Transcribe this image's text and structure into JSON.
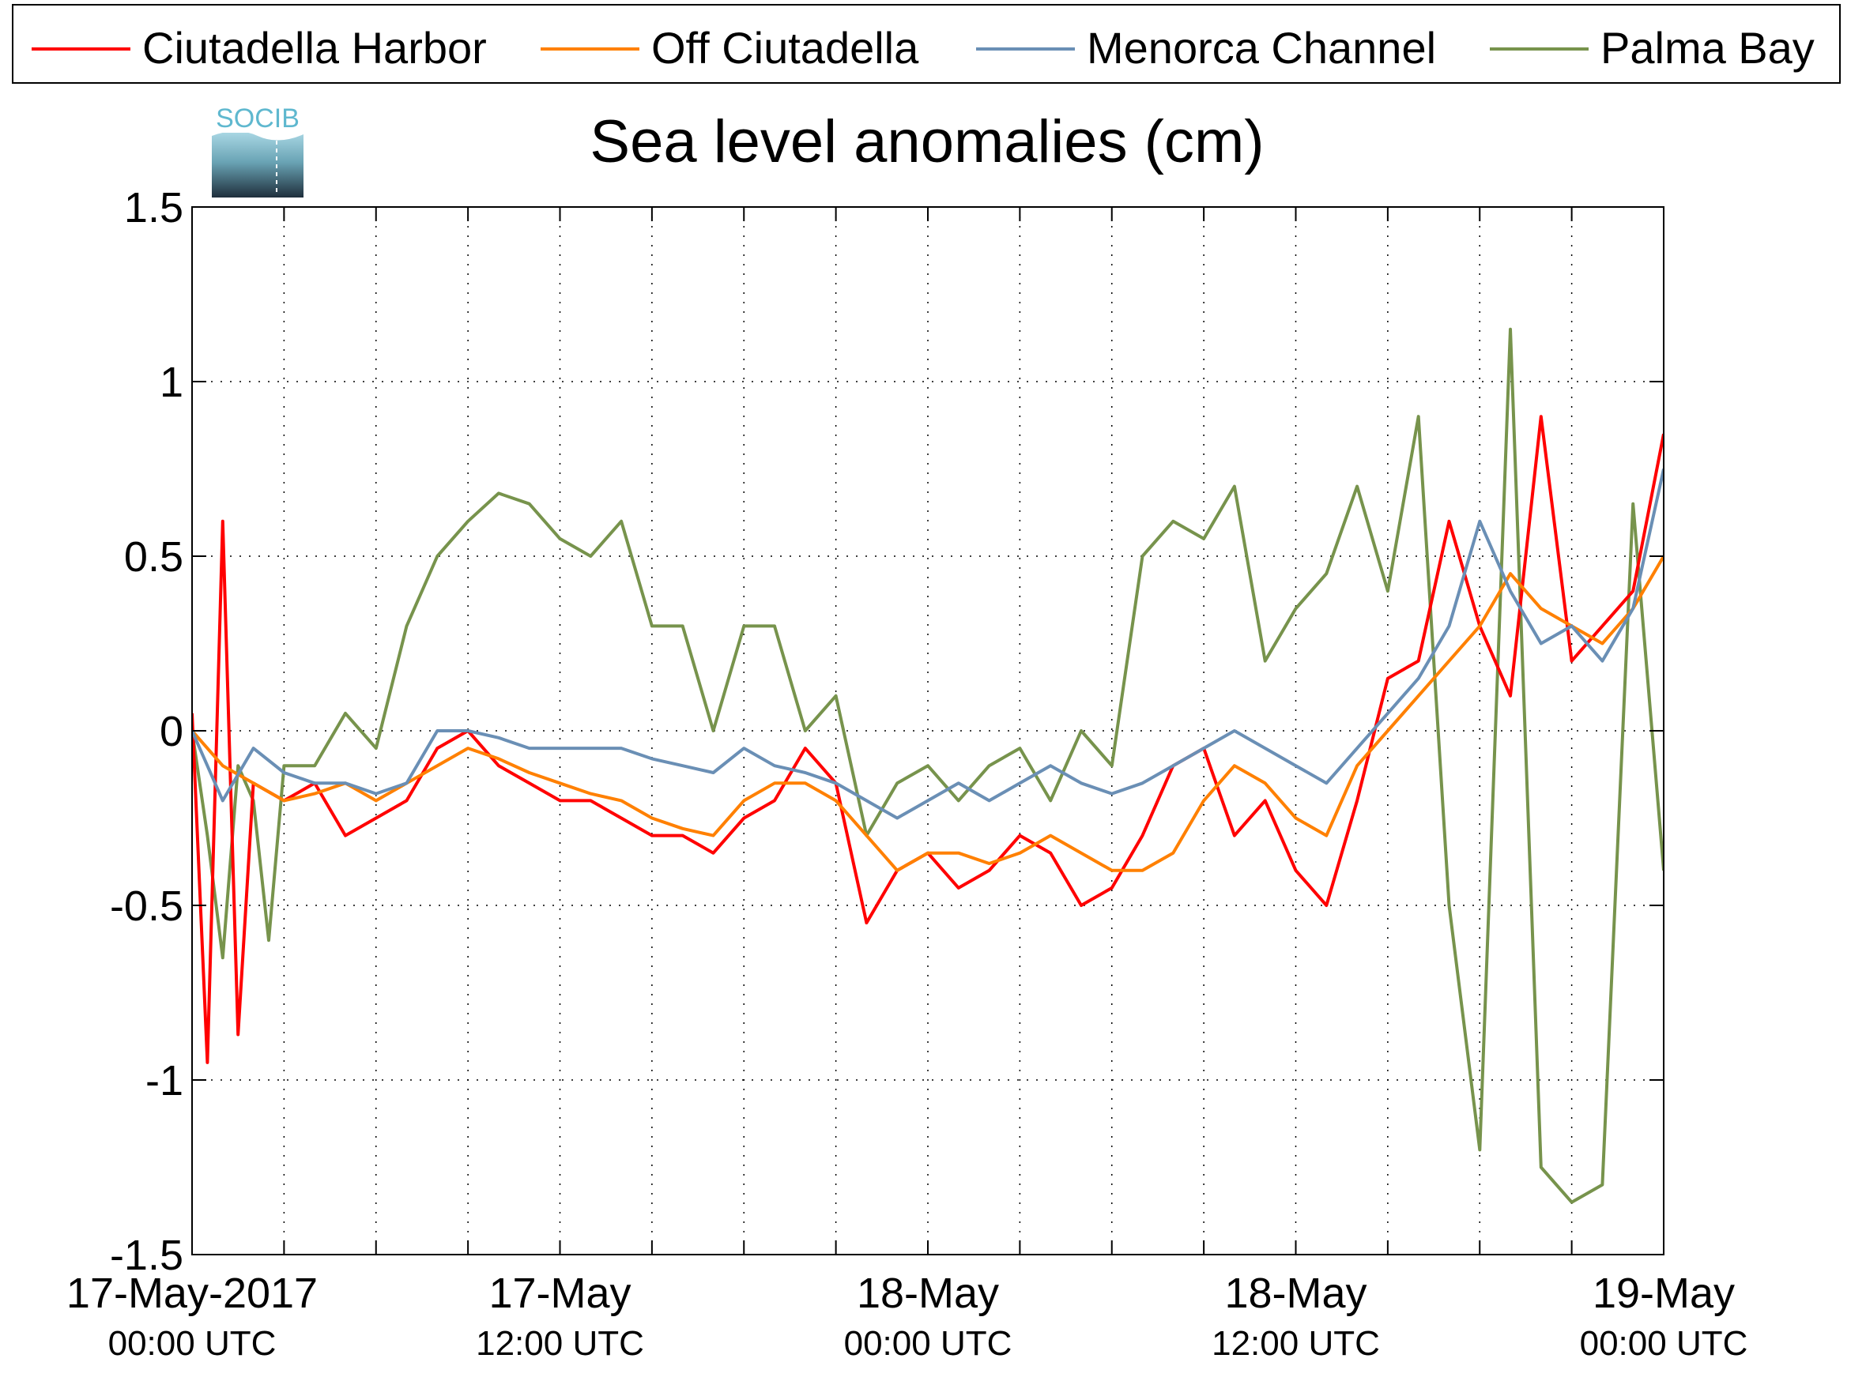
{
  "chart_data": {
    "type": "line",
    "title": "Sea level anomalies (cm)",
    "logo_text": "SOCIB",
    "ylim": [
      -1.5,
      1.5
    ],
    "y_ticks": [
      -1.5,
      -1,
      -0.5,
      0,
      0.5,
      1,
      1.5
    ],
    "y_tick_labels": [
      "-1.5",
      "-1",
      "-0.5",
      "0",
      "0.5",
      "1",
      "1.5"
    ],
    "x_range_hours": [
      0,
      48
    ],
    "x_ticks_hours": [
      3,
      6,
      9,
      12,
      15,
      18,
      21,
      24,
      27,
      30,
      33,
      36,
      39,
      42,
      45
    ],
    "x_tick_labels": [
      {
        "hour": 0,
        "line1": "17-May-2017",
        "line2": "00:00 UTC"
      },
      {
        "hour": 12,
        "line1": "17-May",
        "line2": "12:00 UTC"
      },
      {
        "hour": 24,
        "line1": "18-May",
        "line2": "00:00 UTC"
      },
      {
        "hour": 36,
        "line1": "18-May",
        "line2": "12:00 UTC"
      },
      {
        "hour": 48,
        "line1": "19-May",
        "line2": "00:00 UTC"
      }
    ],
    "grid": true,
    "legend_position": "top",
    "series": [
      {
        "name": "Ciutadella Harbor",
        "color": "#ff0000",
        "hours": [
          0,
          0.5,
          1,
          1.5,
          2,
          3,
          4,
          5,
          6,
          7,
          8,
          9,
          10,
          11,
          12,
          13,
          14,
          15,
          16,
          17,
          18,
          19,
          20,
          21,
          22,
          23,
          24,
          25,
          26,
          27,
          28,
          29,
          30,
          31,
          32,
          33,
          34,
          35,
          36,
          37,
          38,
          39,
          40,
          41,
          42,
          43,
          44,
          45,
          46,
          47,
          48
        ],
        "values": [
          0.05,
          -0.95,
          0.6,
          -0.87,
          -0.15,
          -0.2,
          -0.15,
          -0.3,
          -0.25,
          -0.2,
          -0.05,
          0.0,
          -0.1,
          -0.15,
          -0.2,
          -0.2,
          -0.25,
          -0.3,
          -0.3,
          -0.35,
          -0.25,
          -0.2,
          -0.05,
          -0.15,
          -0.55,
          -0.4,
          -0.35,
          -0.45,
          -0.4,
          -0.3,
          -0.35,
          -0.5,
          -0.45,
          -0.3,
          -0.1,
          -0.05,
          -0.3,
          -0.2,
          -0.4,
          -0.5,
          -0.2,
          0.15,
          0.2,
          0.6,
          0.3,
          0.1,
          0.9,
          0.2,
          0.3,
          0.4,
          0.85
        ]
      },
      {
        "name": "Off Ciutadella",
        "color": "#ff8000",
        "hours": [
          0,
          1,
          2,
          3,
          4,
          5,
          6,
          7,
          8,
          9,
          10,
          11,
          12,
          13,
          14,
          15,
          16,
          17,
          18,
          19,
          20,
          21,
          22,
          23,
          24,
          25,
          26,
          27,
          28,
          29,
          30,
          31,
          32,
          33,
          34,
          35,
          36,
          37,
          38,
          39,
          40,
          41,
          42,
          43,
          44,
          45,
          46,
          47,
          48
        ],
        "values": [
          0.0,
          -0.1,
          -0.15,
          -0.2,
          -0.18,
          -0.15,
          -0.2,
          -0.15,
          -0.1,
          -0.05,
          -0.08,
          -0.12,
          -0.15,
          -0.18,
          -0.2,
          -0.25,
          -0.28,
          -0.3,
          -0.2,
          -0.15,
          -0.15,
          -0.2,
          -0.3,
          -0.4,
          -0.35,
          -0.35,
          -0.38,
          -0.35,
          -0.3,
          -0.35,
          -0.4,
          -0.4,
          -0.35,
          -0.2,
          -0.1,
          -0.15,
          -0.25,
          -0.3,
          -0.1,
          0.0,
          0.1,
          0.2,
          0.3,
          0.45,
          0.35,
          0.3,
          0.25,
          0.35,
          0.5
        ]
      },
      {
        "name": "Menorca Channel",
        "color": "#6a8fb5",
        "hours": [
          0,
          1,
          2,
          3,
          4,
          5,
          6,
          7,
          8,
          9,
          10,
          11,
          12,
          13,
          14,
          15,
          16,
          17,
          18,
          19,
          20,
          21,
          22,
          23,
          24,
          25,
          26,
          27,
          28,
          29,
          30,
          31,
          32,
          33,
          34,
          35,
          36,
          37,
          38,
          39,
          40,
          41,
          42,
          43,
          44,
          45,
          46,
          47,
          48
        ],
        "values": [
          0.0,
          -0.2,
          -0.05,
          -0.12,
          -0.15,
          -0.15,
          -0.18,
          -0.15,
          0.0,
          0.0,
          -0.02,
          -0.05,
          -0.05,
          -0.05,
          -0.05,
          -0.08,
          -0.1,
          -0.12,
          -0.05,
          -0.1,
          -0.12,
          -0.15,
          -0.2,
          -0.25,
          -0.2,
          -0.15,
          -0.2,
          -0.15,
          -0.1,
          -0.15,
          -0.18,
          -0.15,
          -0.1,
          -0.05,
          0.0,
          -0.05,
          -0.1,
          -0.15,
          -0.05,
          0.05,
          0.15,
          0.3,
          0.6,
          0.4,
          0.25,
          0.3,
          0.2,
          0.35,
          0.75
        ]
      },
      {
        "name": "Palma Bay",
        "color": "#77934c",
        "hours": [
          0,
          0.5,
          1,
          1.5,
          2,
          2.5,
          3,
          4,
          5,
          6,
          7,
          8,
          9,
          10,
          11,
          12,
          13,
          14,
          15,
          16,
          17,
          18,
          19,
          20,
          21,
          22,
          23,
          24,
          25,
          26,
          27,
          28,
          29,
          30,
          31,
          32,
          33,
          34,
          35,
          36,
          37,
          38,
          39,
          40,
          41,
          42,
          43,
          44,
          45,
          46,
          47,
          48
        ],
        "values": [
          0.0,
          -0.3,
          -0.65,
          -0.1,
          -0.2,
          -0.6,
          -0.1,
          -0.1,
          0.05,
          -0.05,
          0.3,
          0.5,
          0.6,
          0.68,
          0.65,
          0.55,
          0.5,
          0.6,
          0.3,
          0.3,
          0.0,
          0.3,
          0.3,
          0.0,
          0.1,
          -0.3,
          -0.15,
          -0.1,
          -0.2,
          -0.1,
          -0.05,
          -0.2,
          0.0,
          -0.1,
          0.5,
          0.6,
          0.55,
          0.7,
          0.2,
          0.35,
          0.45,
          0.7,
          0.4,
          0.9,
          -0.5,
          -1.2,
          1.15,
          -1.25,
          -1.35,
          -1.3,
          0.65,
          -0.4
        ]
      }
    ]
  }
}
